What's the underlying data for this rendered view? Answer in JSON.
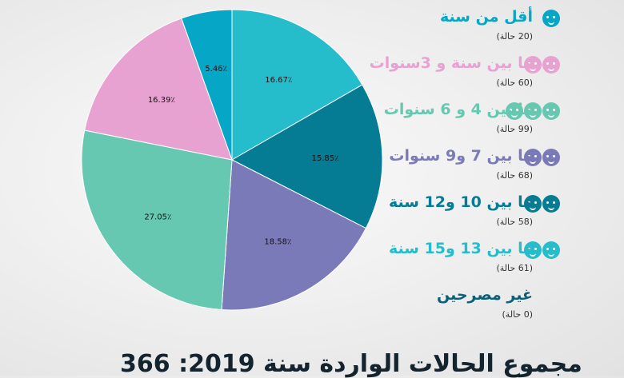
{
  "chart_data": {
    "type": "pie",
    "slices": [
      {
        "label": "أقل من سنة",
        "count_text": "(20 حالة)",
        "value": 5.46,
        "value_label": "5.46٪",
        "color": "#06a6c6",
        "icons": 1
      },
      {
        "label": "ما بين سنة و 3سنوات",
        "count_text": "(60 حالة)",
        "value": 16.39,
        "value_label": "16.39٪",
        "color": "#e8a2d2",
        "icons": 2
      },
      {
        "label": "ما بين 4 و 6 سنوات",
        "count_text": "(99 حالة)",
        "value": 27.05,
        "value_label": "27.05٪",
        "color": "#66c8b0",
        "icons": 3
      },
      {
        "label": "ما بين 7 و9 سنوات",
        "count_text": "(68 حالة)",
        "value": 18.58,
        "value_label": "18.58٪",
        "color": "#7b7ab8",
        "icons": 2
      },
      {
        "label": "ما بين 10 و12 سنة",
        "count_text": "(58 حالة)",
        "value": 15.85,
        "value_label": "15.85٪",
        "color": "#057c94",
        "icons": 2
      },
      {
        "label": "ما بين 13 و15 سنة",
        "count_text": "(61 حالة)",
        "value": 16.67,
        "value_label": "16.67٪",
        "color": "#25bccc",
        "icons": 2
      },
      {
        "label": "غير مصرحين",
        "count_text": "(0 حالة)",
        "value": 0,
        "value_label": "",
        "color": "#0b5f78",
        "icons": 0
      }
    ],
    "pie_order": [
      5,
      4,
      3,
      2,
      1,
      0
    ]
  },
  "footer": {
    "total": "مجموع الحالات الواردة سنة 2019: 366"
  }
}
